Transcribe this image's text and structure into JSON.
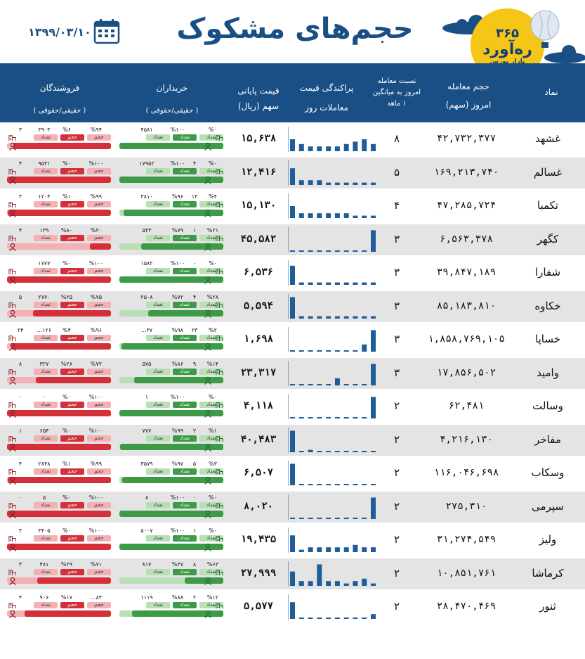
{
  "header": {
    "title": "حجم‌های مشکوک",
    "date": "۱۳۹۹/۰۳/۱۰",
    "logo_top": "۳۶۵",
    "logo_name": "ره‌آورد",
    "logo_sub": "بازار بورس"
  },
  "columns": {
    "symbol": "نماد",
    "volume_1": "حجم معامله",
    "volume_2": "امروز (سهم)",
    "ratio_1": "نسبت معامله",
    "ratio_2": "امروز به میانگین",
    "ratio_3": "۱ ماهه",
    "dist_1": "پراکندگی قیمت",
    "dist_2": "معاملات روز",
    "price_1": "قیمت پایانی",
    "price_2": "سهم (ریال)",
    "buyers_1": "خریداران",
    "buyers_2": "( حقیقی/حقوقی )",
    "sellers_1": "فروشندگان",
    "sellers_2": "( حقیقی/حقوقی )"
  },
  "labels": {
    "count": "تعداد",
    "volume": "حجم"
  },
  "colors": {
    "header_blue": "#1a4f86",
    "buyer_green": "#3d9a46",
    "buyer_light": "#b8dfb5",
    "seller_red": "#d3303a",
    "seller_light": "#f3b1b5",
    "hist_blue": "#1f5d99"
  },
  "rows": [
    {
      "symbol": "غشهد",
      "volume": "۴۲,۷۳۲,۳۷۷",
      "ratio": "۸",
      "price": "۱۵,۶۳۸",
      "hist": [
        0.5,
        0.3,
        0.2,
        0.2,
        0.2,
        0.2,
        0.3,
        0.4,
        0.5,
        0.3
      ],
      "buy": {
        "p1": "%۰",
        "p2": "%۱۰۰",
        "n": "۴۵۸۱",
        "legal": "",
        "bar": 1.0
      },
      "sell": {
        "p1": "%۹۴",
        "p2": "%۶",
        "n": "۳۹۰۳",
        "legal": "۳",
        "bar": 0.94
      }
    },
    {
      "symbol": "غسالم",
      "volume": "۱۶۹,۲۱۳,۷۴۰",
      "ratio": "۵",
      "price": "۱۲,۴۱۶",
      "hist": [
        0.7,
        0.2,
        0.2,
        0.2,
        0.1,
        0.1,
        0.1,
        0.1,
        0.1,
        0.1
      ],
      "buy": {
        "p1": "%۰",
        "p2": "%۱۰۰",
        "n": "۱۷۹۵۲",
        "legal": "۴",
        "bar": 1.0
      },
      "sell": {
        "p1": "%۱۰۰",
        "p2": "%۰",
        "n": "۹۵۳۱",
        "legal": "۴",
        "bar": 1.0
      }
    },
    {
      "symbol": "تکمبا",
      "volume": "۴۷,۲۸۵,۷۲۴",
      "ratio": "۴",
      "price": "۱۵,۱۳۰",
      "hist": [
        0.5,
        0.2,
        0.2,
        0.2,
        0.2,
        0.2,
        0.2,
        0.1,
        0.1,
        0.1
      ],
      "buy": {
        "p1": "%۴",
        "p2": "%۹۶",
        "n": "۳۸۱۰",
        "legal": "۱۳",
        "bar": 0.96
      },
      "sell": {
        "p1": "%۹۹",
        "p2": "%۱",
        "n": "۱۲۰۴",
        "legal": "۳",
        "bar": 0.99
      }
    },
    {
      "symbol": "کگهر",
      "volume": "۶,۵۶۳,۳۷۸",
      "ratio": "۳",
      "price": "۴۵,۵۸۲",
      "hist": [
        0,
        0,
        0,
        0,
        0,
        0,
        0,
        0,
        0,
        0.9
      ],
      "buy": {
        "p1": "%۲۱",
        "p2": "%۷۹",
        "n": "۵۳۳",
        "legal": "۱",
        "bar": 0.79
      },
      "sell": {
        "p1": "%۲۰",
        "p2": "%۸۰",
        "n": "۱۳۹",
        "legal": "۴",
        "bar": 0.2
      }
    },
    {
      "symbol": "شفارا",
      "volume": "۳۹,۸۴۷,۱۸۹",
      "ratio": "۳",
      "price": "۶,۵۳۶",
      "hist": [
        0.8,
        0.1,
        0.1,
        0.1,
        0.1,
        0.1,
        0.1,
        0.1,
        0.1,
        0.1
      ],
      "buy": {
        "p1": "%۰",
        "p2": "%۱۰۰",
        "n": "۱۵۸۲",
        "legal": "۰",
        "bar": 1.0
      },
      "sell": {
        "p1": "%۱۰۰",
        "p2": "%۰",
        "n": "۱۷۷۷",
        "legal": "",
        "bar": 1.0
      }
    },
    {
      "symbol": "خکاوه",
      "volume": "۸۵,۱۸۳,۸۱۰",
      "ratio": "۳",
      "price": "۵,۵۹۴",
      "hist": [
        0.9,
        0.1,
        0.1,
        0.1,
        0.1,
        0.1,
        0.1,
        0.1,
        0.1,
        0.1
      ],
      "buy": {
        "p1": "%۲۸",
        "p2": "%۷۲",
        "n": "۲۵۰۸",
        "legal": "۴",
        "bar": 0.72
      },
      "sell": {
        "p1": "%۷۵",
        "p2": "%۲۵",
        "n": "۲۷۷۰",
        "legal": "۵",
        "bar": 0.75
      }
    },
    {
      "symbol": "خساپا",
      "volume": "۱,۸۵۸,۷۶۹,۱۰۵",
      "ratio": "۳",
      "price": "۱,۶۹۸",
      "hist": [
        0,
        0,
        0,
        0,
        0,
        0,
        0,
        0,
        0.3,
        0.9
      ],
      "buy": {
        "p1": "%۲",
        "p2": "%۹۸",
        "n": "...۳۷",
        "legal": "۲۳",
        "bar": 0.98
      },
      "sell": {
        "p1": "%۹۶",
        "p2": "%۴",
        "n": "...۱۲۶",
        "legal": "۲۴",
        "bar": 0.96
      }
    },
    {
      "symbol": "وامید",
      "volume": "۱۷,۸۵۶,۵۰۲",
      "ratio": "۳",
      "price": "۲۳,۳۱۷",
      "hist": [
        0,
        0,
        0,
        0,
        0,
        0.3,
        0,
        0,
        0,
        0.9
      ],
      "buy": {
        "p1": "%۱۴",
        "p2": "%۸۶",
        "n": "۵۷۵",
        "legal": "۹",
        "bar": 0.86
      },
      "sell": {
        "p1": "%۷۲",
        "p2": "%۲۸",
        "n": "۳۲۷",
        "legal": "۸",
        "bar": 0.72
      }
    },
    {
      "symbol": "وسالت",
      "volume": "۶۲,۴۸۱",
      "ratio": "۲",
      "price": "۴,۱۱۸",
      "hist": [
        0,
        0,
        0,
        0,
        0,
        0,
        0,
        0,
        0,
        0.9
      ],
      "buy": {
        "p1": "%۰",
        "p2": "%۱۰۰",
        "n": "۱",
        "legal": "",
        "bar": 1.0
      },
      "sell": {
        "p1": "%۱۰۰",
        "p2": "%۰",
        "n": "۰",
        "legal": "۰",
        "bar": 1.0
      }
    },
    {
      "symbol": "مفاخر",
      "volume": "۴,۲۱۶,۱۳۰",
      "ratio": "۲",
      "price": "۴۰,۴۸۳",
      "hist": [
        0.9,
        0.05,
        0.1,
        0.05,
        0.05,
        0.05,
        0.05,
        0.05,
        0.05,
        0.05
      ],
      "buy": {
        "p1": "%۱",
        "p2": "%۹۹",
        "n": "۷۷۷",
        "legal": "۲",
        "bar": 0.99
      },
      "sell": {
        "p1": "%۱۰۰",
        "p2": "%۰",
        "n": "۶۵۴",
        "legal": "۱",
        "bar": 1.0
      }
    },
    {
      "symbol": "وسکاب",
      "volume": "۱۱۶,۰۴۶,۶۹۸",
      "ratio": "۲",
      "price": "۶,۵۰۷",
      "hist": [
        0.9,
        0.05,
        0.05,
        0.05,
        0.05,
        0.05,
        0.05,
        0.05,
        0.05,
        0.05
      ],
      "buy": {
        "p1": "%۳",
        "p2": "%۹۷",
        "n": "۳۵۷۹",
        "legal": "۵",
        "bar": 0.97
      },
      "sell": {
        "p1": "%۹۹",
        "p2": "%۱",
        "n": "۲۸۳۸",
        "legal": "۴",
        "bar": 0.99
      }
    },
    {
      "symbol": "سپرمی",
      "volume": "۲۷۵,۳۱۰",
      "ratio": "۲",
      "price": "۸,۰۲۰",
      "hist": [
        0,
        0,
        0,
        0,
        0,
        0,
        0,
        0,
        0,
        0.9
      ],
      "buy": {
        "p1": "%۰",
        "p2": "%۱۰۰",
        "n": "۸",
        "legal": "۰",
        "bar": 1.0
      },
      "sell": {
        "p1": "%۱۰۰",
        "p2": "%۰",
        "n": "۵",
        "legal": "۰",
        "bar": 1.0
      }
    },
    {
      "symbol": "ولیز",
      "volume": "۳۱,۲۷۴,۵۴۹",
      "ratio": "۲",
      "price": "۱۹,۴۳۵",
      "hist": [
        0.7,
        0.1,
        0.2,
        0.2,
        0.2,
        0.2,
        0.2,
        0.3,
        0.2,
        0.2
      ],
      "buy": {
        "p1": "%۰",
        "p2": "%۱۰۰",
        "n": "۵۰۰۷",
        "legal": "۱",
        "bar": 1.0
      },
      "sell": {
        "p1": "%۱۰۰",
        "p2": "%۰",
        "n": "۳۴۰۵",
        "legal": "۳",
        "bar": 1.0
      }
    },
    {
      "symbol": "کرماشا",
      "volume": "۱۰,۸۵۱,۷۶۱",
      "ratio": "۲",
      "price": "۲۷,۹۹۹",
      "hist": [
        0.6,
        0.2,
        0.2,
        0.9,
        0.2,
        0.2,
        0.1,
        0.2,
        0.3,
        0.1
      ],
      "buy": {
        "p1": "%۶۳",
        "p2": "%۳۷",
        "n": "۸۱۷",
        "legal": "۸",
        "bar": 0.37
      },
      "sell": {
        "p1": "%۷۱",
        "p2": "%۲۹",
        "n": "۴۸۱",
        "legal": "۳",
        "bar": 0.71
      }
    },
    {
      "symbol": "ثنور",
      "volume": "۲۸,۴۷۰,۴۶۹",
      "ratio": "۲",
      "price": "۵,۵۷۷",
      "hist": [
        0.7,
        0.05,
        0.05,
        0.05,
        0.05,
        0.05,
        0.05,
        0.05,
        0.05,
        0.2
      ],
      "buy": {
        "p1": "%۱۲",
        "p2": "%۸۸",
        "n": "۱۱۱۹",
        "legal": "۲",
        "bar": 0.88
      },
      "sell": {
        "p1": "...۸۳",
        "p2": "%۱۷",
        "n": "۹۰۶",
        "legal": "۴",
        "bar": 0.83
      }
    }
  ]
}
